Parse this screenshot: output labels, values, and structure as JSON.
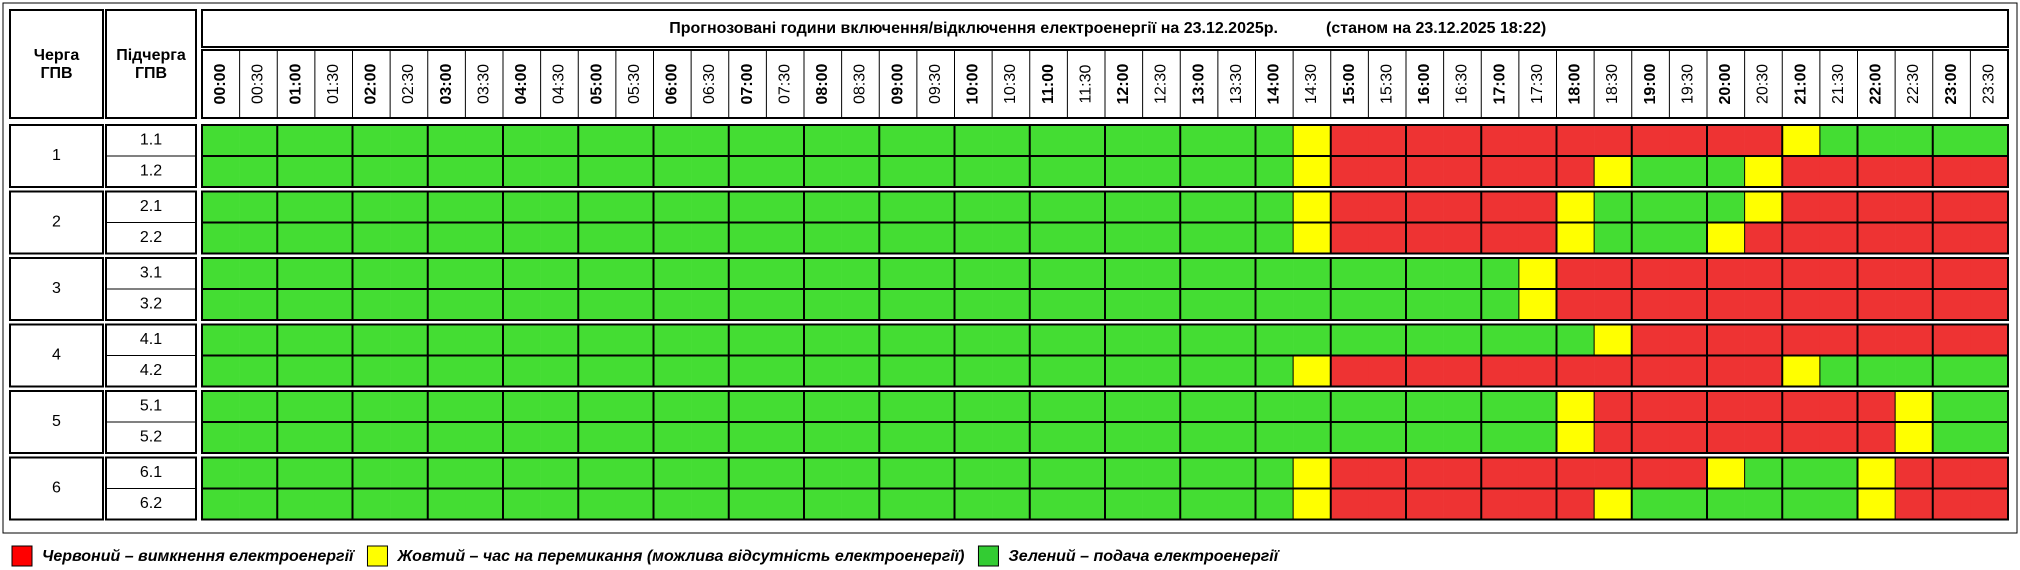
{
  "header": {
    "queue": [
      "Черга",
      "ГПВ"
    ],
    "subqueue": [
      "Підчерга",
      "ГПВ"
    ],
    "title": "Прогнозовані години включення/відключення електроенергії на 23.12.2025р.",
    "subtitle": "(станом на 23.12.2025 18:22)"
  },
  "times": [
    "00:00",
    "00:30",
    "01:00",
    "01:30",
    "02:00",
    "02:30",
    "03:00",
    "03:30",
    "04:00",
    "04:30",
    "05:00",
    "05:30",
    "06:00",
    "06:30",
    "07:00",
    "07:30",
    "08:00",
    "08:30",
    "09:00",
    "09:30",
    "10:00",
    "10:30",
    "11:00",
    "11:30",
    "12:00",
    "12:30",
    "13:00",
    "13:30",
    "14:00",
    "14:30",
    "15:00",
    "15:30",
    "16:00",
    "16:30",
    "17:00",
    "17:30",
    "18:00",
    "18:30",
    "19:00",
    "19:30",
    "20:00",
    "20:30",
    "21:00",
    "21:30",
    "22:00",
    "22:30",
    "23:00",
    "23:30"
  ],
  "groups": [
    {
      "label": "1",
      "subgroups": [
        {
          "label": "1.1",
          "slots": [
            "#4d3",
            "#4d3",
            "#4d3",
            "#4d3",
            "#4d3",
            "#4d3",
            "#4d3",
            "#4d3",
            "#4d3",
            "#4d3",
            "#4d3",
            "#4d3",
            "#4d3",
            "#4d3",
            "#4d3",
            "#4d3",
            "#4d3",
            "#4d3",
            "#4d3",
            "#4d3",
            "#4d3",
            "#4d3",
            "#4d3",
            "#4d3",
            "#4d3",
            "#4d3",
            "#4d3",
            "#4d3",
            "#4d3",
            "#ff0",
            "#e33",
            "#e33",
            "#e33",
            "#e33",
            "#e33",
            "#e33",
            "#e33",
            "#e33",
            "#e33",
            "#e33",
            "#e33",
            "#e33",
            "#ff0",
            "#4d3",
            "#4d3",
            "#4d3",
            "#4d3",
            "#4d3"
          ]
        },
        {
          "label": "1.2",
          "slots": [
            "#4d3",
            "#4d3",
            "#4d3",
            "#4d3",
            "#4d3",
            "#4d3",
            "#4d3",
            "#4d3",
            "#4d3",
            "#4d3",
            "#4d3",
            "#4d3",
            "#4d3",
            "#4d3",
            "#4d3",
            "#4d3",
            "#4d3",
            "#4d3",
            "#4d3",
            "#4d3",
            "#4d3",
            "#4d3",
            "#4d3",
            "#4d3",
            "#4d3",
            "#4d3",
            "#4d3",
            "#4d3",
            "#4d3",
            "#ff0",
            "#e33",
            "#e33",
            "#e33",
            "#e33",
            "#e33",
            "#e33",
            "#e33",
            "#ff0",
            "#4d3",
            "#4d3",
            "#4d3",
            "#ff0",
            "#e33",
            "#e33",
            "#e33",
            "#e33",
            "#e33",
            "#e33"
          ]
        }
      ]
    },
    {
      "label": "2",
      "subgroups": [
        {
          "label": "2.1",
          "slots": [
            "#4d3",
            "#4d3",
            "#4d3",
            "#4d3",
            "#4d3",
            "#4d3",
            "#4d3",
            "#4d3",
            "#4d3",
            "#4d3",
            "#4d3",
            "#4d3",
            "#4d3",
            "#4d3",
            "#4d3",
            "#4d3",
            "#4d3",
            "#4d3",
            "#4d3",
            "#4d3",
            "#4d3",
            "#4d3",
            "#4d3",
            "#4d3",
            "#4d3",
            "#4d3",
            "#4d3",
            "#4d3",
            "#4d3",
            "#ff0",
            "#e33",
            "#e33",
            "#e33",
            "#e33",
            "#e33",
            "#e33",
            "#ff0",
            "#4d3",
            "#4d3",
            "#4d3",
            "#4d3",
            "#ff0",
            "#e33",
            "#e33",
            "#e33",
            "#e33",
            "#e33",
            "#e33"
          ]
        },
        {
          "label": "2.2",
          "slots": [
            "#4d3",
            "#4d3",
            "#4d3",
            "#4d3",
            "#4d3",
            "#4d3",
            "#4d3",
            "#4d3",
            "#4d3",
            "#4d3",
            "#4d3",
            "#4d3",
            "#4d3",
            "#4d3",
            "#4d3",
            "#4d3",
            "#4d3",
            "#4d3",
            "#4d3",
            "#4d3",
            "#4d3",
            "#4d3",
            "#4d3",
            "#4d3",
            "#4d3",
            "#4d3",
            "#4d3",
            "#4d3",
            "#4d3",
            "#ff0",
            "#e33",
            "#e33",
            "#e33",
            "#e33",
            "#e33",
            "#e33",
            "#ff0",
            "#4d3",
            "#4d3",
            "#4d3",
            "#ff0",
            "#e33",
            "#e33",
            "#e33",
            "#e33",
            "#e33",
            "#e33",
            "#e33"
          ]
        }
      ]
    },
    {
      "label": "3",
      "subgroups": [
        {
          "label": "3.1",
          "slots": [
            "#4d3",
            "#4d3",
            "#4d3",
            "#4d3",
            "#4d3",
            "#4d3",
            "#4d3",
            "#4d3",
            "#4d3",
            "#4d3",
            "#4d3",
            "#4d3",
            "#4d3",
            "#4d3",
            "#4d3",
            "#4d3",
            "#4d3",
            "#4d3",
            "#4d3",
            "#4d3",
            "#4d3",
            "#4d3",
            "#4d3",
            "#4d3",
            "#4d3",
            "#4d3",
            "#4d3",
            "#4d3",
            "#4d3",
            "#4d3",
            "#4d3",
            "#4d3",
            "#4d3",
            "#4d3",
            "#4d3",
            "#ff0",
            "#e33",
            "#e33",
            "#e33",
            "#e33",
            "#e33",
            "#e33",
            "#e33",
            "#e33",
            "#e33",
            "#e33",
            "#e33",
            "#e33"
          ]
        },
        {
          "label": "3.2",
          "slots": [
            "#4d3",
            "#4d3",
            "#4d3",
            "#4d3",
            "#4d3",
            "#4d3",
            "#4d3",
            "#4d3",
            "#4d3",
            "#4d3",
            "#4d3",
            "#4d3",
            "#4d3",
            "#4d3",
            "#4d3",
            "#4d3",
            "#4d3",
            "#4d3",
            "#4d3",
            "#4d3",
            "#4d3",
            "#4d3",
            "#4d3",
            "#4d3",
            "#4d3",
            "#4d3",
            "#4d3",
            "#4d3",
            "#4d3",
            "#4d3",
            "#4d3",
            "#4d3",
            "#4d3",
            "#4d3",
            "#4d3",
            "#ff0",
            "#e33",
            "#e33",
            "#e33",
            "#e33",
            "#e33",
            "#e33",
            "#e33",
            "#e33",
            "#e33",
            "#e33",
            "#e33",
            "#e33"
          ]
        }
      ]
    },
    {
      "label": "4",
      "subgroups": [
        {
          "label": "4.1",
          "slots": [
            "#4d3",
            "#4d3",
            "#4d3",
            "#4d3",
            "#4d3",
            "#4d3",
            "#4d3",
            "#4d3",
            "#4d3",
            "#4d3",
            "#4d3",
            "#4d3",
            "#4d3",
            "#4d3",
            "#4d3",
            "#4d3",
            "#4d3",
            "#4d3",
            "#4d3",
            "#4d3",
            "#4d3",
            "#4d3",
            "#4d3",
            "#4d3",
            "#4d3",
            "#4d3",
            "#4d3",
            "#4d3",
            "#4d3",
            "#4d3",
            "#4d3",
            "#4d3",
            "#4d3",
            "#4d3",
            "#4d3",
            "#4d3",
            "#4d3",
            "#ff0",
            "#e33",
            "#e33",
            "#e33",
            "#e33",
            "#e33",
            "#e33",
            "#e33",
            "#e33",
            "#e33",
            "#e33"
          ]
        },
        {
          "label": "4.2",
          "slots": [
            "#4d3",
            "#4d3",
            "#4d3",
            "#4d3",
            "#4d3",
            "#4d3",
            "#4d3",
            "#4d3",
            "#4d3",
            "#4d3",
            "#4d3",
            "#4d3",
            "#4d3",
            "#4d3",
            "#4d3",
            "#4d3",
            "#4d3",
            "#4d3",
            "#4d3",
            "#4d3",
            "#4d3",
            "#4d3",
            "#4d3",
            "#4d3",
            "#4d3",
            "#4d3",
            "#4d3",
            "#4d3",
            "#4d3",
            "#ff0",
            "#e33",
            "#e33",
            "#e33",
            "#e33",
            "#e33",
            "#e33",
            "#e33",
            "#e33",
            "#e33",
            "#e33",
            "#e33",
            "#e33",
            "#ff0",
            "#4d3",
            "#4d3",
            "#4d3",
            "#4d3",
            "#4d3"
          ]
        }
      ]
    },
    {
      "label": "5",
      "subgroups": [
        {
          "label": "5.1",
          "slots": [
            "#4d3",
            "#4d3",
            "#4d3",
            "#4d3",
            "#4d3",
            "#4d3",
            "#4d3",
            "#4d3",
            "#4d3",
            "#4d3",
            "#4d3",
            "#4d3",
            "#4d3",
            "#4d3",
            "#4d3",
            "#4d3",
            "#4d3",
            "#4d3",
            "#4d3",
            "#4d3",
            "#4d3",
            "#4d3",
            "#4d3",
            "#4d3",
            "#4d3",
            "#4d3",
            "#4d3",
            "#4d3",
            "#4d3",
            "#4d3",
            "#4d3",
            "#4d3",
            "#4d3",
            "#4d3",
            "#4d3",
            "#4d3",
            "#ff0",
            "#e33",
            "#e33",
            "#e33",
            "#e33",
            "#e33",
            "#e33",
            "#e33",
            "#e33",
            "#ff0",
            "#4d3",
            "#4d3"
          ]
        },
        {
          "label": "5.2",
          "slots": [
            "#4d3",
            "#4d3",
            "#4d3",
            "#4d3",
            "#4d3",
            "#4d3",
            "#4d3",
            "#4d3",
            "#4d3",
            "#4d3",
            "#4d3",
            "#4d3",
            "#4d3",
            "#4d3",
            "#4d3",
            "#4d3",
            "#4d3",
            "#4d3",
            "#4d3",
            "#4d3",
            "#4d3",
            "#4d3",
            "#4d3",
            "#4d3",
            "#4d3",
            "#4d3",
            "#4d3",
            "#4d3",
            "#4d3",
            "#4d3",
            "#4d3",
            "#4d3",
            "#4d3",
            "#4d3",
            "#4d3",
            "#4d3",
            "#ff0",
            "#e33",
            "#e33",
            "#e33",
            "#e33",
            "#e33",
            "#e33",
            "#e33",
            "#e33",
            "#ff0",
            "#4d3",
            "#4d3"
          ]
        }
      ]
    },
    {
      "label": "6",
      "subgroups": [
        {
          "label": "6.1",
          "slots": [
            "#4d3",
            "#4d3",
            "#4d3",
            "#4d3",
            "#4d3",
            "#4d3",
            "#4d3",
            "#4d3",
            "#4d3",
            "#4d3",
            "#4d3",
            "#4d3",
            "#4d3",
            "#4d3",
            "#4d3",
            "#4d3",
            "#4d3",
            "#4d3",
            "#4d3",
            "#4d3",
            "#4d3",
            "#4d3",
            "#4d3",
            "#4d3",
            "#4d3",
            "#4d3",
            "#4d3",
            "#4d3",
            "#4d3",
            "#ff0",
            "#e33",
            "#e33",
            "#e33",
            "#e33",
            "#e33",
            "#e33",
            "#e33",
            "#e33",
            "#e33",
            "#e33",
            "#ff0",
            "#4d3",
            "#4d3",
            "#4d3",
            "#ff0",
            "#e33",
            "#e33",
            "#e33"
          ]
        },
        {
          "label": "6.2",
          "slots": [
            "#4d3",
            "#4d3",
            "#4d3",
            "#4d3",
            "#4d3",
            "#4d3",
            "#4d3",
            "#4d3",
            "#4d3",
            "#4d3",
            "#4d3",
            "#4d3",
            "#4d3",
            "#4d3",
            "#4d3",
            "#4d3",
            "#4d3",
            "#4d3",
            "#4d3",
            "#4d3",
            "#4d3",
            "#4d3",
            "#4d3",
            "#4d3",
            "#4d3",
            "#4d3",
            "#4d3",
            "#4d3",
            "#4d3",
            "#ff0",
            "#e33",
            "#e33",
            "#e33",
            "#e33",
            "#e33",
            "#e33",
            "#e33",
            "#ff0",
            "#4d3",
            "#4d3",
            "#4d3",
            "#4d3",
            "#4d3",
            "#4d3",
            "#ff0",
            "#e33",
            "#e33",
            "#e33"
          ]
        }
      ]
    }
  ],
  "legend": [
    {
      "color": "#f00",
      "label": "Червоний – вимкнення електроенергії"
    },
    {
      "color": "#ff0",
      "label": "Жовтий – час на перемикання (можлива відсутність електроенергії)"
    },
    {
      "color": "#3c3",
      "label": "Зелений – подача електроенергії"
    }
  ]
}
